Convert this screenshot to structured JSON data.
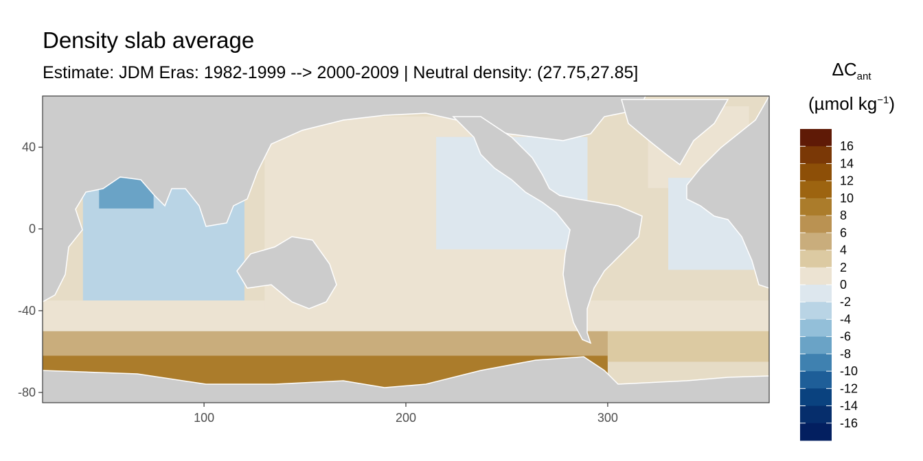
{
  "chart_data": {
    "type": "heatmap",
    "title": "Density slab average",
    "subtitle": "Estimate: JDM Eras: 1982-1999 --> 2000-2009 | Neutral density: (27.75,27.85]",
    "xlabel": "",
    "ylabel": "",
    "xlim": [
      20,
      380
    ],
    "ylim": [
      -85,
      65
    ],
    "x_ticks": [
      100,
      200,
      300
    ],
    "y_ticks": [
      40,
      0,
      -40,
      -80
    ],
    "grid": false,
    "land_color": "#cccccc",
    "legend": {
      "title_symbol": "ΔC",
      "title_subscript": "ant",
      "unit_text": "(µmol kg",
      "unit_superscript": "−1",
      "unit_close": ")",
      "placement": "right",
      "labels": [
        "16",
        "14",
        "12",
        "10",
        "8",
        "6",
        "4",
        "2",
        "0",
        "-2",
        "-4",
        "-6",
        "-8",
        "-10",
        "-12",
        "-14",
        "-16"
      ],
      "colors": [
        "#5f1a06",
        "#7a3806",
        "#8d4f07",
        "#9d6410",
        "#ab7c2b",
        "#ba9252",
        "#c9ad7c",
        "#dccaa2",
        "#ece3d2",
        "#dde7ee",
        "#b9d4e5",
        "#93bfd9",
        "#6aa3c6",
        "#3f81b0",
        "#1e5e98",
        "#0a427f",
        "#062e6c",
        "#031f60"
      ]
    },
    "regions": [
      {
        "name": "southern-ocean-core",
        "lon": [
          20,
          300
        ],
        "lat": [
          -78,
          -62
        ],
        "value": 10
      },
      {
        "name": "southern-ocean-band",
        "lon": [
          20,
          380
        ],
        "lat": [
          -62,
          -50
        ],
        "value": 6
      },
      {
        "name": "south-atlantic-band",
        "lon": [
          300,
          380
        ],
        "lat": [
          -65,
          -40
        ],
        "value": 4
      },
      {
        "name": "southern-mid-latitudes",
        "lon": [
          20,
          380
        ],
        "lat": [
          -50,
          -35
        ],
        "value": 2
      },
      {
        "name": "pacific-interior",
        "lon": [
          130,
          280
        ],
        "lat": [
          -40,
          55
        ],
        "value": 0.5
      },
      {
        "name": "north-atlantic",
        "lon": [
          320,
          370
        ],
        "lat": [
          20,
          60
        ],
        "value": 0.5
      },
      {
        "name": "indian-ocean",
        "lon": [
          40,
          120
        ],
        "lat": [
          -35,
          20
        ],
        "value": -3
      },
      {
        "name": "arabian-sea",
        "lon": [
          48,
          75
        ],
        "lat": [
          10,
          25
        ],
        "value": -7
      },
      {
        "name": "eastern-tropical-pacific",
        "lon": [
          215,
          290
        ],
        "lat": [
          -10,
          45
        ],
        "value": -1
      },
      {
        "name": "tropical-atlantic",
        "lon": [
          330,
          380
        ],
        "lat": [
          -20,
          25
        ],
        "value": -1
      }
    ]
  }
}
